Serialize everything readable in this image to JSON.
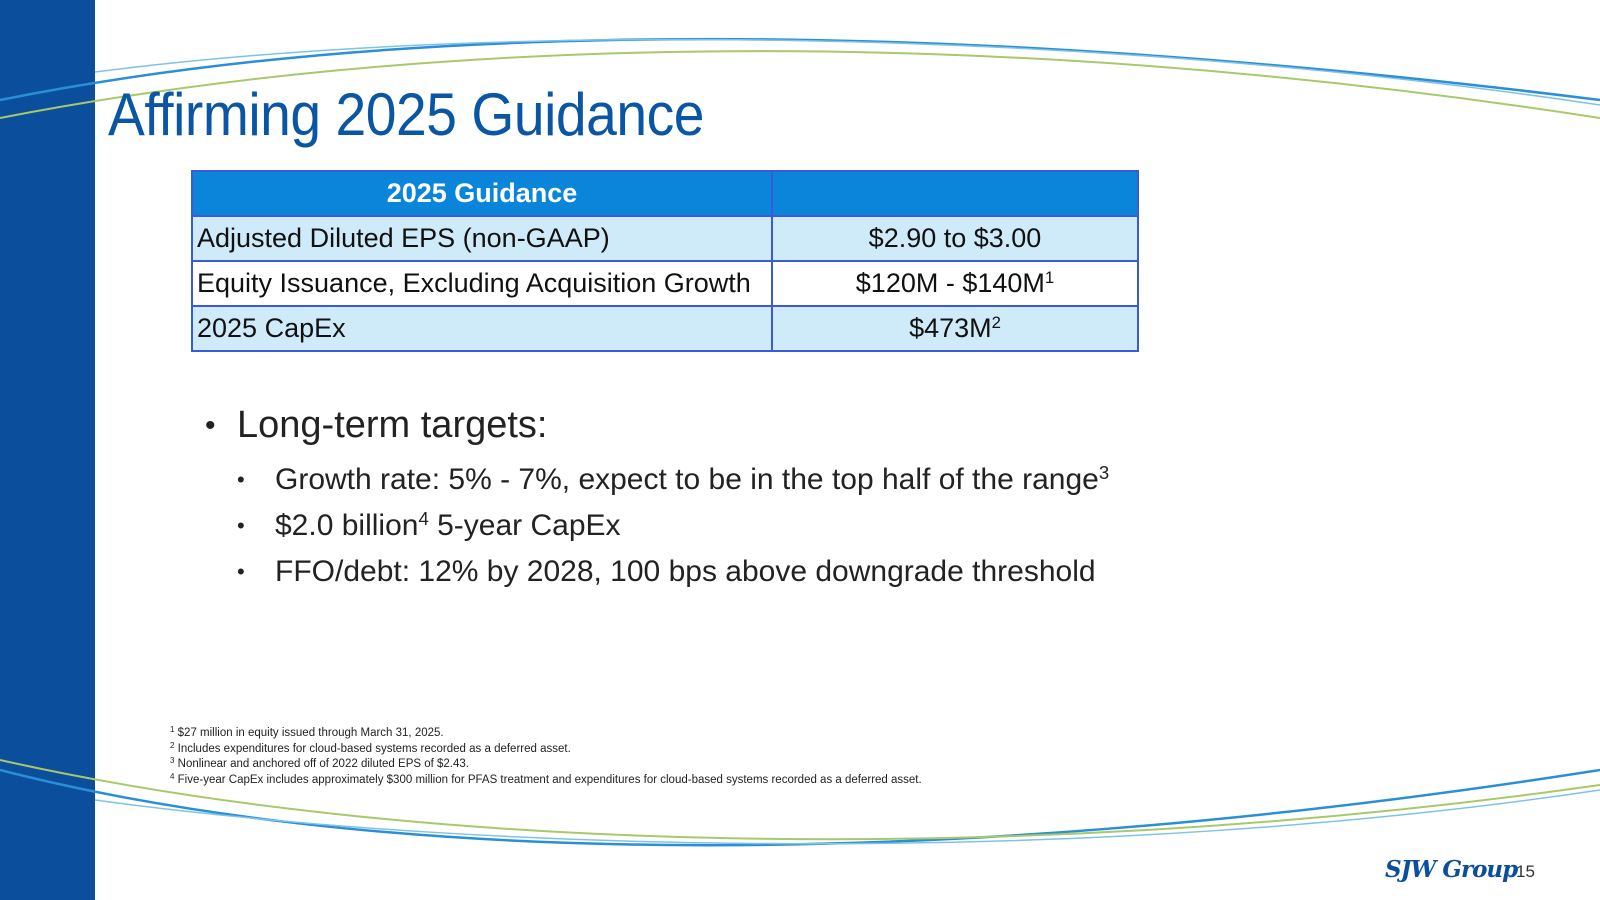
{
  "slide": {
    "title": "Affirming 2025 Guidance",
    "page_number": "15",
    "logo_text": "SJW Group"
  },
  "table": {
    "header": "2025 Guidance",
    "header_value": "",
    "rows": [
      {
        "metric": "Adjusted Diluted EPS (non-GAAP)",
        "value": "$2.90 to $3.00",
        "note": ""
      },
      {
        "metric": "Equity Issuance, Excluding Acquisition Growth",
        "value": "$120M - $140M",
        "note": "1"
      },
      {
        "metric": "2025 CapEx",
        "value": "$473M",
        "note": "2"
      }
    ]
  },
  "targets": {
    "heading": "Long-term targets:",
    "items": [
      {
        "text": "Growth rate: 5% - 7%, expect to be in the top half of the range",
        "note": "3",
        "tail": ""
      },
      {
        "text": "$2.0 billion",
        "note": "4",
        "tail": " 5-year CapEx"
      },
      {
        "text": "FFO/debt: 12% by 2028, 100 bps above downgrade threshold",
        "note": "",
        "tail": ""
      }
    ]
  },
  "footnotes": [
    {
      "num": "1",
      "text": "$27 million in equity issued through March 31, 2025."
    },
    {
      "num": "2",
      "text": "Includes expenditures for cloud-based systems recorded as a deferred asset."
    },
    {
      "num": "3",
      "text": "Nonlinear and anchored off of 2022 diluted EPS of $2.43."
    },
    {
      "num": "4",
      "text": "Five-year CapEx includes approximately $300 million for PFAS treatment and expenditures for cloud-based systems recorded as a deferred asset."
    }
  ],
  "colors": {
    "sidebar": "#0b4f9c",
    "title": "#0b56a4",
    "table_header": "#0a85d9",
    "row_shade": "#cfeaf9",
    "table_border": "#3b5bd6"
  }
}
